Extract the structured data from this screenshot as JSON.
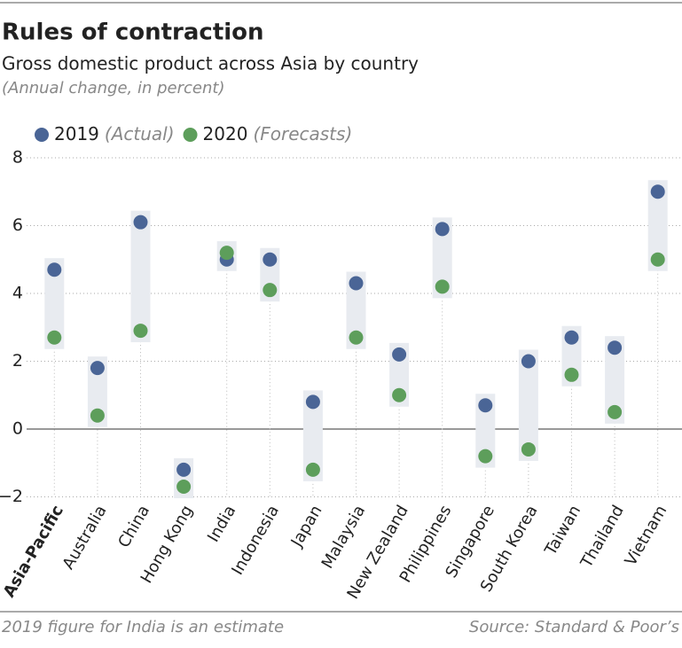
{
  "chart_data": {
    "type": "dot-range",
    "title": "Rules of contraction",
    "subtitle": "Gross domestic product across Asia by country",
    "unit_note": "(Annual change, in percent)",
    "categories": [
      "Asia-Pacific",
      "Australia",
      "China",
      "Hong Kong",
      "India",
      "Indonesia",
      "Japan",
      "Malaysia",
      "New Zealand",
      "Philippines",
      "Singapore",
      "South Korea",
      "Taiwan",
      "Thailand",
      "Vietnam"
    ],
    "series": [
      {
        "name": "2019",
        "note": "(Actual)",
        "color": "#4a6596",
        "values": [
          4.7,
          1.8,
          6.1,
          -1.2,
          5.0,
          5.0,
          0.8,
          4.3,
          2.2,
          5.9,
          0.7,
          2.0,
          2.7,
          2.4,
          7.0
        ]
      },
      {
        "name": "2020",
        "note": "(Forecasts)",
        "color": "#5d9e5b",
        "values": [
          2.7,
          0.4,
          2.9,
          -1.7,
          5.2,
          4.1,
          -1.2,
          2.7,
          1.0,
          4.2,
          -0.8,
          -0.6,
          1.6,
          0.5,
          5.0
        ]
      }
    ],
    "ylim": [
      -2.2,
      8
    ],
    "yticks": [
      {
        "value": -2,
        "label": "−2"
      },
      0,
      2,
      4,
      6,
      8
    ],
    "grid": true,
    "footnote": "2019 figure for India is an estimate",
    "source": "Source: Standard & Poor’s"
  }
}
